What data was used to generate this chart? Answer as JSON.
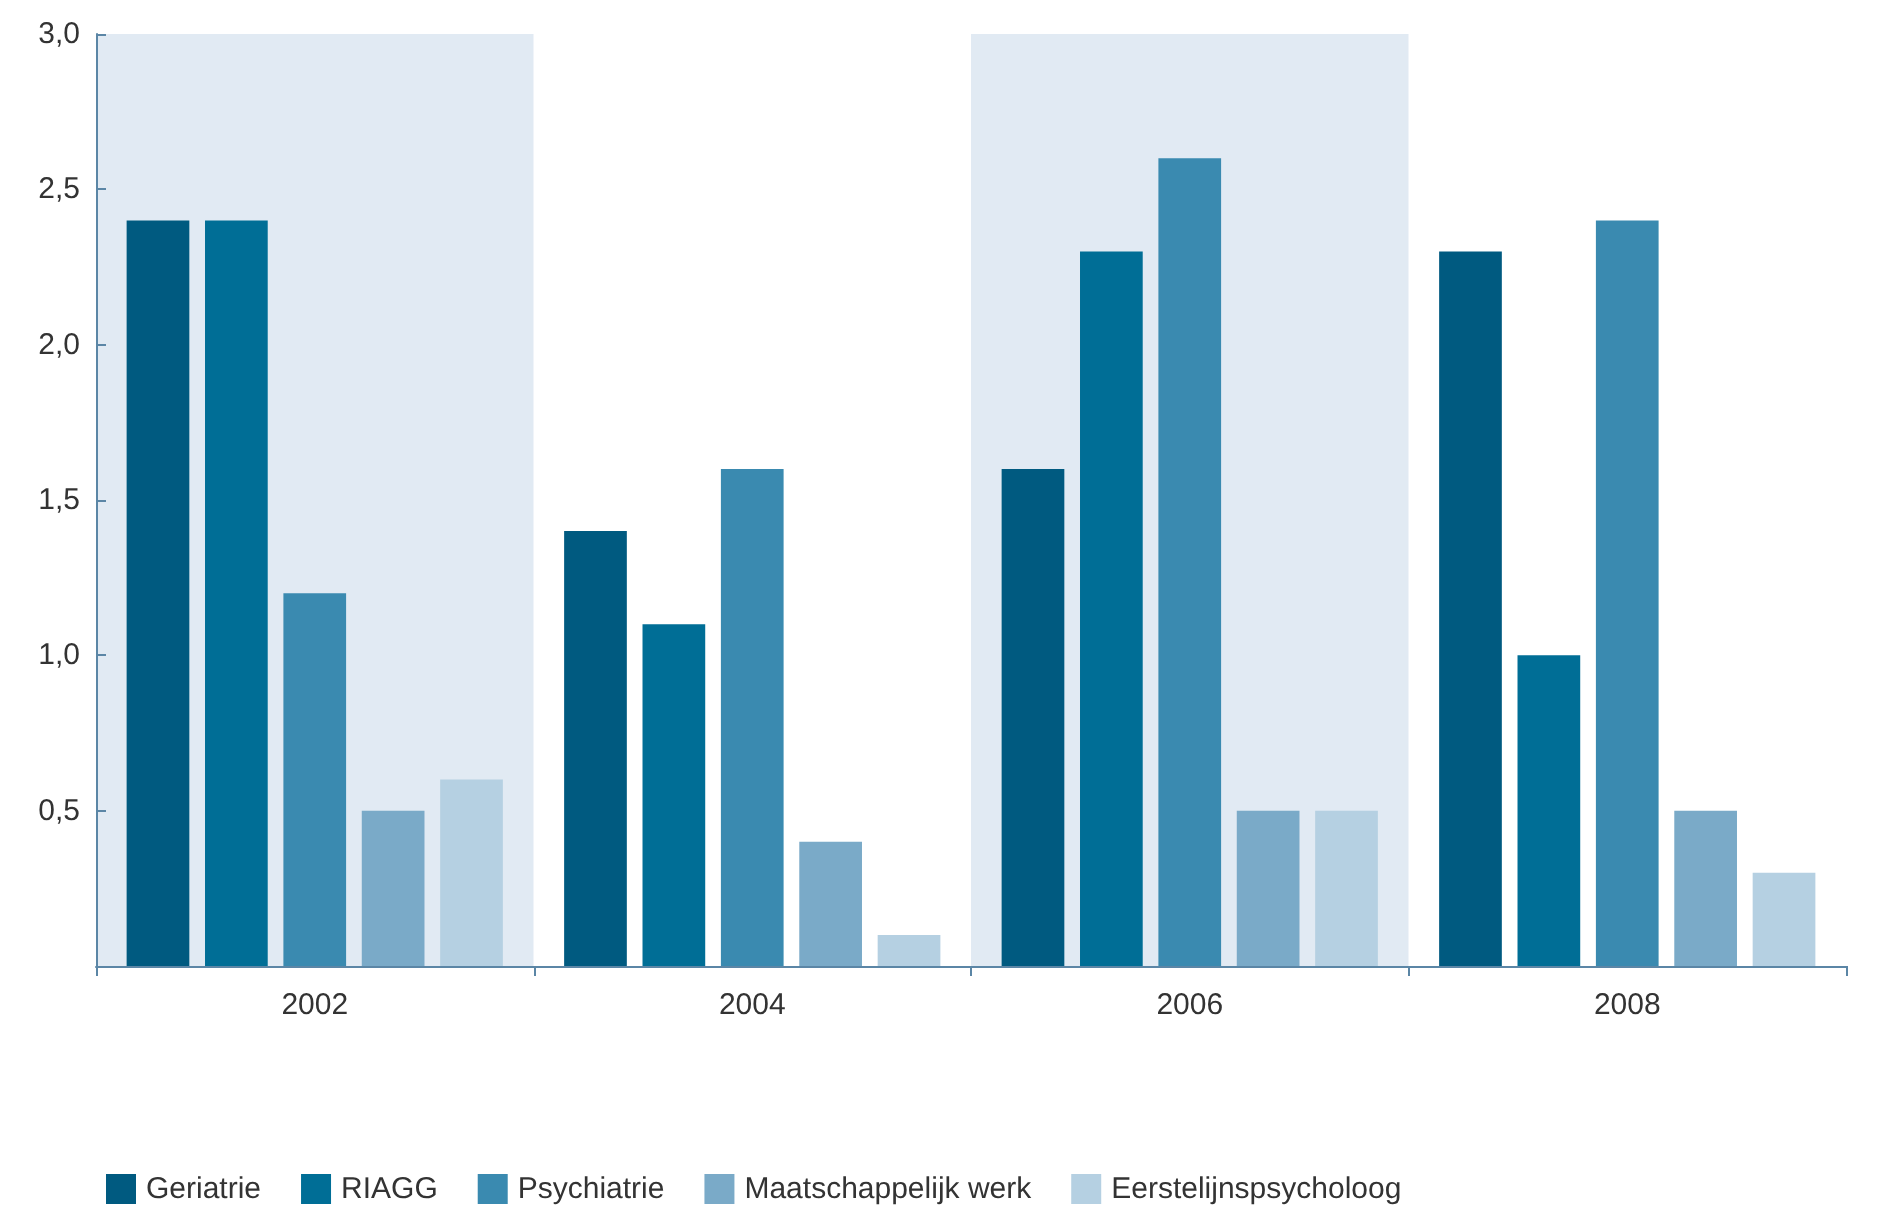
{
  "chart_data": {
    "type": "bar",
    "categories": [
      "2002",
      "2004",
      "2006",
      "2008"
    ],
    "series": [
      {
        "name": "Geriatrie",
        "color": "#005a80",
        "values": [
          2.4,
          1.4,
          1.6,
          2.3
        ]
      },
      {
        "name": "RIAGG",
        "color": "#006e96",
        "values": [
          2.4,
          1.1,
          2.3,
          1.0
        ]
      },
      {
        "name": "Psychiatrie",
        "color": "#3a8ab0",
        "values": [
          1.2,
          1.6,
          2.6,
          2.4
        ]
      },
      {
        "name": "Maatschappelijk werk",
        "color": "#7aaac8",
        "values": [
          0.5,
          0.4,
          0.5,
          0.5
        ]
      },
      {
        "name": "Eerstelijnspsycholoog",
        "color": "#b5d0e2",
        "values": [
          0.6,
          0.1,
          0.5,
          0.3
        ]
      }
    ],
    "ylim": [
      0,
      3
    ],
    "yticks": [
      {
        "value": 0,
        "label": null
      },
      {
        "value": 0.5,
        "label": "0,5"
      },
      {
        "value": 1,
        "label": "1,0"
      },
      {
        "value": 1.5,
        "label": "1,5"
      },
      {
        "value": 2,
        "label": "2,0"
      },
      {
        "value": 2.5,
        "label": "2,5"
      },
      {
        "value": 3,
        "label": "3,0"
      }
    ],
    "bands": [
      {
        "axis": "x",
        "from": "2002",
        "to": "2002",
        "color": "#e1eaf3"
      },
      {
        "axis": "x",
        "from": "2006",
        "to": "2006",
        "color": "#e1eaf3"
      }
    ],
    "grid": false,
    "legend": "bottom"
  }
}
